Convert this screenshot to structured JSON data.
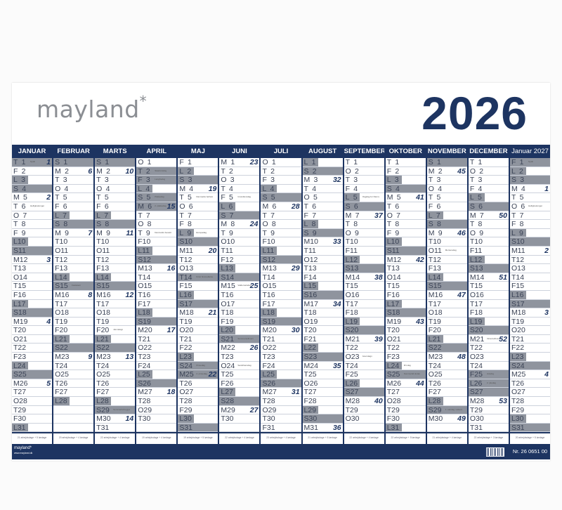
{
  "header": {
    "logo": "mayland",
    "logo_mark": "*",
    "year": "2026"
  },
  "colors": {
    "navy": "#1d3461",
    "shade": "#8f949e",
    "logo_gray": "#8b8e93"
  },
  "months": [
    {
      "name": "JANUAR",
      "weekdays": "TFLSMTOTFLSMTOTFLSMTOTFLSMTOTFL",
      "weeks": {
        "1": 1,
        "5": 2,
        "12": 3,
        "19": 4,
        "26": 5
      },
      "holidays": [
        1
      ],
      "notes": {
        "1": "Nytår",
        "6": "Helligtrekonger"
      },
      "footer": "21 arbejdsdage + 5 lørdage"
    },
    {
      "name": "FEBRUAR",
      "weekdays": "SMTOTFLSMTOTFLSMTOTFLSMTOTFL",
      "weeks": {
        "2": 6,
        "9": 7,
        "16": 8,
        "23": 9
      },
      "holidays": [],
      "notes": {
        "15": "Fastelavn"
      },
      "footer": "20 arbejdsdage + 4 lørdage"
    },
    {
      "name": "MARTS",
      "weekdays": "SMTOTFLSMTOTFLSMTOTFLSMTOTFLSMT",
      "weeks": {
        "2": 10,
        "9": 11,
        "16": 12,
        "23": 13,
        "30": 14
      },
      "holidays": [],
      "notes": {
        "20": "Jævndøgn",
        "29": "Sommertid begynder"
      },
      "footer": "22 arbejdsdage + 4 lørdage"
    },
    {
      "name": "APRIL",
      "weekdays": "OTFLSMTOTFLSMTOTFLSMTOTFLSMTOT",
      "weeks": {
        "6": 15,
        "13": 16,
        "20": 17,
        "27": 18
      },
      "holidays": [
        2,
        3,
        5,
        6
      ],
      "notes": {
        "2": "Skærtorsdag",
        "3": "Langfredag",
        "5": "Påskedag",
        "6": "2. påskedag",
        "9": "Danmarks besættelse 1940"
      },
      "footer": "19 arbejdsdage + 4 lørdage"
    },
    {
      "name": "MAJ",
      "weekdays": "FLSMTOTFLSMTOTFLSMTOTFLSMTOTFLS",
      "weeks": {
        "4": 19,
        "11": 20,
        "18": 21,
        "25": 22
      },
      "holidays": [
        14,
        24,
        25
      ],
      "notes": {
        "5": "Danmarks befrielse 1945",
        "9": "Europadag",
        "14": "Kristi himmelfartsdag",
        "24": "Pinsedag",
        "25": "2. pinsedag"
      },
      "footer": "19 arbejdsdage + 5 lørdage"
    },
    {
      "name": "JUNI",
      "weekdays": "MTOTFLSMTOTFLSMTOTFLSMTOTFLSMT",
      "weeks": {
        "1": 23,
        "8": 24,
        "15": 25,
        "22": 26,
        "29": 27
      },
      "holidays": [],
      "notes": {
        "5": "Grundlovsdag",
        "15": "Valdemarsdag",
        "21": "Sommersolhverv",
        "24": "Sankthansdag"
      },
      "footer": "22 arbejdsdage + 4 lørdage"
    },
    {
      "name": "JULI",
      "weekdays": "OTFLSMTOTFLSMTOTFLSMTOTFLSMTOTF",
      "weeks": {
        "6": 28,
        "13": 29,
        "20": 30,
        "27": 31
      },
      "holidays": [],
      "notes": {},
      "footer": "23 arbejdsdage + 4 lørdage"
    },
    {
      "name": "AUGUST",
      "weekdays": "LSMTOTFLSMTOTFLSMTOTFLSMTOTFLSM",
      "weeks": {
        "3": 32,
        "10": 33,
        "17": 34,
        "24": 35,
        "31": 36
      },
      "holidays": [],
      "notes": {},
      "footer": "21 arbejdsdage + 5 lørdage"
    },
    {
      "name": "SEPTEMBER",
      "weekdays": "TOTFLSMTOTFLSMTOTFLSMTOTFLSMTO",
      "weeks": {
        "7": 37,
        "14": 38,
        "21": 39,
        "28": 40
      },
      "holidays": [],
      "notes": {
        "5": "Flagdag for Danmarks udsendte",
        "23": "Jævndøgn"
      },
      "footer": "22 arbejdsdage + 4 lørdage"
    },
    {
      "name": "OKTOBER",
      "weekdays": "TFLSMTOTFLSMTOTFLSMTOTFLSMTOTFL",
      "weeks": {
        "5": 41,
        "12": 42,
        "19": 43,
        "26": 44
      },
      "holidays": [],
      "notes": {
        "24": "FN-dag",
        "25": "Sommertid slutter"
      },
      "footer": "22 arbejdsdage + 5 lørdage"
    },
    {
      "name": "NOVEMBER",
      "weekdays": "SMTOTFLSMTOTFLSMTOTFLSMTOTFLSM",
      "weeks": {
        "2": 45,
        "9": 46,
        "16": 47,
        "23": 48,
        "30": 49
      },
      "holidays": [],
      "notes": {
        "11": "Mortensdag",
        "29": "1. søndag i advent"
      },
      "footer": "21 arbejdsdage + 4 lørdage"
    },
    {
      "name": "DECEMBER",
      "weekdays": "TOTFLSMTOTFLSMTOTFLSMTOTFLSMTOT",
      "weeks": {
        "7": 50,
        "14": 51,
        "21": 52,
        "28": 53
      },
      "holidays": [
        25,
        26
      ],
      "notes": {
        "21": "Vintersolhverv",
        "25": "Juledag",
        "26": "2. juledag"
      },
      "footer": "22 arbejdsdage + 3 lørdage"
    },
    {
      "name": "Januar 2027",
      "weekdays": "FLSMTOTFLSMTOTFLSMTOTFLSMTOTFLS",
      "weeks": {
        "4": 1,
        "11": 2,
        "18": 3,
        "25": 4
      },
      "holidays": [
        1
      ],
      "notes": {
        "1": "Nytår",
        "6": "Helligtrekonger"
      },
      "footer": "20 arbejdsdage + 5 lørdage"
    }
  ],
  "bottom": {
    "logo": "mayland*",
    "url": "www.mayland.dk",
    "barcode_icon": "barcode",
    "product_number": "Nr. 26 0651 00"
  }
}
